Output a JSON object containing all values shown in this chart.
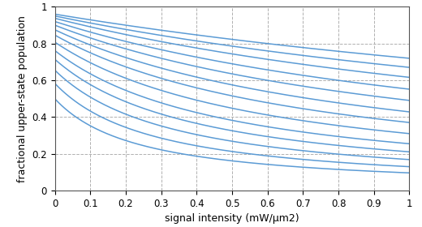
{
  "xlabel": "signal intensity (mW/μm2)",
  "ylabel": "fractional upper-state population",
  "xlim": [
    0,
    1
  ],
  "ylim": [
    0,
    1
  ],
  "xticks": [
    0,
    0.1,
    0.2,
    0.3,
    0.4,
    0.5,
    0.6,
    0.7,
    0.8,
    0.9,
    1
  ],
  "yticks": [
    0,
    0.2,
    0.4,
    0.6,
    0.8,
    1
  ],
  "line_color": "#5b9bd5",
  "background_color": "#ffffff",
  "n_points": 400,
  "pump_levels": [
    1.0,
    1.4,
    1.9,
    2.5,
    3.2,
    4.2,
    5.5,
    7.0,
    9.0,
    11.5,
    15.0,
    19.0,
    24.0
  ],
  "signal_sat": 0.12,
  "pump_sat": 1.0,
  "grid_color": "#b0b0b0",
  "grid_style": "--",
  "linewidth": 1.1,
  "xlabel_fontsize": 9,
  "ylabel_fontsize": 9,
  "tick_fontsize": 8.5
}
